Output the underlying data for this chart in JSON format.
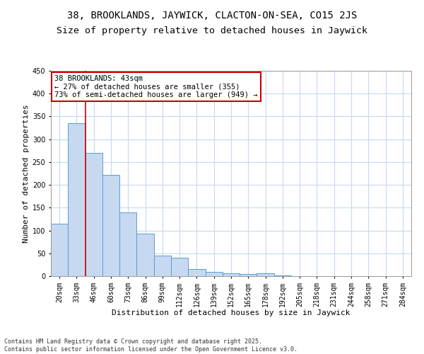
{
  "title": "38, BROOKLANDS, JAYWICK, CLACTON-ON-SEA, CO15 2JS",
  "subtitle": "Size of property relative to detached houses in Jaywick",
  "xlabel": "Distribution of detached houses by size in Jaywick",
  "ylabel": "Number of detached properties",
  "bar_labels": [
    "20sqm",
    "33sqm",
    "46sqm",
    "60sqm",
    "73sqm",
    "86sqm",
    "99sqm",
    "112sqm",
    "126sqm",
    "139sqm",
    "152sqm",
    "165sqm",
    "178sqm",
    "192sqm",
    "205sqm",
    "218sqm",
    "231sqm",
    "244sqm",
    "258sqm",
    "271sqm",
    "284sqm"
  ],
  "bar_values": [
    115,
    335,
    270,
    222,
    140,
    93,
    45,
    40,
    16,
    10,
    6,
    5,
    6,
    2,
    0,
    0,
    0,
    0,
    0,
    0,
    0
  ],
  "bar_color": "#c6d9f0",
  "bar_edge_color": "#5b9bd5",
  "property_line_x": 1.5,
  "property_line_color": "#cc0000",
  "annotation_text": "38 BROOKLANDS: 43sqm\n← 27% of detached houses are smaller (355)\n73% of semi-detached houses are larger (949) →",
  "annotation_box_color": "#ffffff",
  "annotation_box_edge": "#cc0000",
  "ylim": [
    0,
    450
  ],
  "yticks": [
    0,
    50,
    100,
    150,
    200,
    250,
    300,
    350,
    400,
    450
  ],
  "background_color": "#ffffff",
  "grid_color": "#c6d9f0",
  "footer": "Contains HM Land Registry data © Crown copyright and database right 2025.\nContains public sector information licensed under the Open Government Licence v3.0.",
  "title_fontsize": 10,
  "subtitle_fontsize": 9.5,
  "axis_label_fontsize": 8,
  "tick_fontsize": 7,
  "annotation_fontsize": 7.5,
  "footer_fontsize": 6
}
